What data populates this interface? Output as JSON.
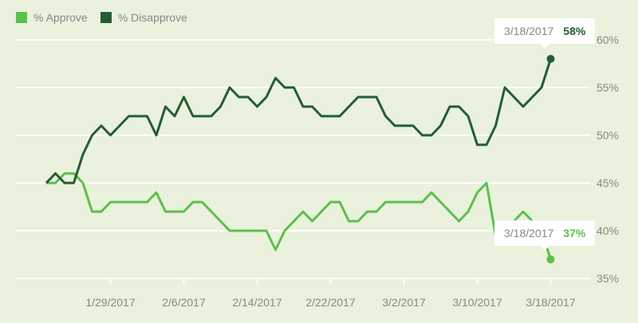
{
  "chart_data": {
    "type": "line",
    "title": "",
    "xlabel": "",
    "ylabel": "",
    "x_start": "1/22/2017",
    "x_end": "3/18/2017",
    "x_ticks": [
      "1/29/2017",
      "2/6/2017",
      "2/14/2017",
      "2/22/2017",
      "3/2/2017",
      "3/10/2017",
      "3/18/2017"
    ],
    "y_ticks": [
      "35%",
      "40%",
      "45%",
      "50%",
      "55%",
      "60%"
    ],
    "ylim": [
      35,
      60
    ],
    "grid": true,
    "legend_position": "top-left",
    "series": [
      {
        "name": "% Approve",
        "color": "#5bbf4e",
        "values": [
          45,
          45,
          46,
          46,
          45,
          42,
          42,
          43,
          43,
          43,
          43,
          43,
          44,
          42,
          42,
          42,
          43,
          43,
          42,
          41,
          40,
          40,
          40,
          40,
          40,
          38,
          40,
          41,
          42,
          41,
          42,
          43,
          43,
          41,
          41,
          42,
          42,
          43,
          43,
          43,
          43,
          43,
          44,
          43,
          42,
          41,
          42,
          44,
          45,
          39.5,
          40,
          41,
          42,
          41,
          40,
          37
        ]
      },
      {
        "name": "% Disapprove",
        "color": "#245c33",
        "values": [
          45,
          46,
          45,
          45,
          48,
          50,
          51,
          50,
          51,
          52,
          52,
          52,
          50,
          53,
          52,
          54,
          52,
          52,
          52,
          53,
          55,
          54,
          54,
          53,
          54,
          56,
          55,
          55,
          53,
          53,
          52,
          52,
          52,
          53,
          54,
          54,
          54,
          52,
          51,
          51,
          51,
          50,
          50,
          51,
          53,
          53,
          52,
          49,
          49,
          51,
          55,
          54,
          53,
          54,
          55,
          58
        ]
      }
    ],
    "annotations": [
      {
        "date": "3/18/2017",
        "value": "58%",
        "series": "% Disapprove"
      },
      {
        "date": "3/18/2017",
        "value": "37%",
        "series": "% Approve"
      }
    ]
  }
}
